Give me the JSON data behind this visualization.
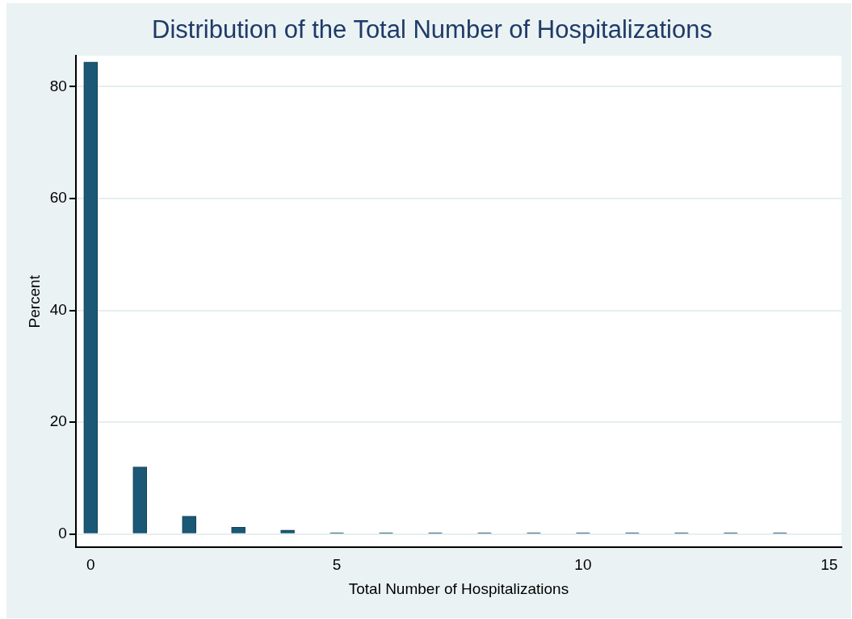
{
  "chart_data": {
    "type": "bar",
    "title": "Distribution of the Total Number of Hospitalizations",
    "xlabel": "Total Number of Hospitalizations",
    "ylabel": "Percent",
    "x": [
      0,
      1,
      2,
      3,
      4,
      5,
      6,
      7,
      8,
      9,
      10,
      11,
      12,
      13,
      14
    ],
    "values": [
      84.4,
      12.0,
      3.2,
      1.2,
      0.7,
      0.2,
      0.2,
      0.2,
      0.2,
      0.2,
      0.2,
      0.2,
      0.2,
      0.2,
      0.2
    ],
    "color": "#1a5876",
    "xlim": [
      -0.3,
      15.25
    ],
    "xticks": [
      0,
      5,
      10,
      15
    ],
    "ylim": [
      -2.4,
      85.5
    ],
    "yticks": [
      0,
      20,
      40,
      60,
      80
    ],
    "grid": "y",
    "legend": false
  }
}
